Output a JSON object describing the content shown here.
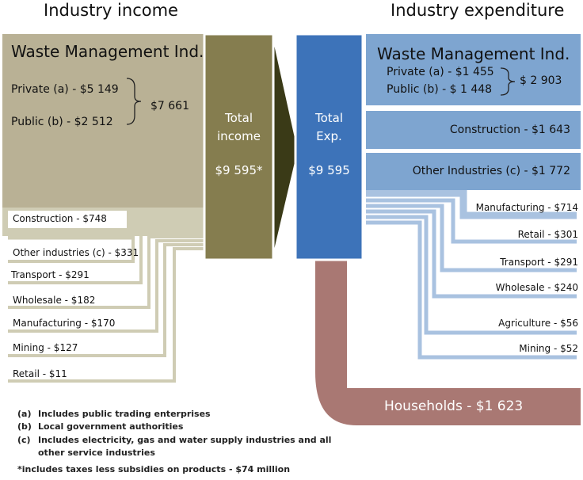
{
  "income": {
    "title": "Industry income",
    "waste_mgmt": {
      "title": "Waste Management Ind.",
      "private": "Private (a) - $5 149",
      "public": "Public (b) - $2 512",
      "total": "$7 661"
    },
    "items": [
      {
        "label": "Construction -  $748"
      },
      {
        "label": "Other industries (c) -  $331"
      },
      {
        "label": "Transport  -  $291"
      },
      {
        "label": "Wholesale -  $182"
      },
      {
        "label": "Manufacturing -  $170"
      },
      {
        "label": "Mining -  $127"
      },
      {
        "label": "Retail -  $11"
      }
    ],
    "total_line1": "Total",
    "total_line2": "income",
    "total_value": "$9 595*"
  },
  "expenditure": {
    "title": "Industry expenditure",
    "waste_mgmt": {
      "title": "Waste Management Ind.",
      "private": "Private (a) - $1 455",
      "public": "Public (b) - $ 1 448",
      "total": "$ 2 903"
    },
    "construction": "Construction - $1 643",
    "other": "Other Industries (c) - $1 772",
    "items": [
      {
        "label": "Manufacturing - $714"
      },
      {
        "label": "Retail - $301"
      },
      {
        "label": "Transport  - $291"
      },
      {
        "label": "Wholesale - $240"
      },
      {
        "label": "Agriculture - $56"
      },
      {
        "label": "Mining - $52"
      }
    ],
    "households": "Households - $1 623",
    "total_line1": "Total",
    "total_line2": "Exp.",
    "total_value": "$9 595"
  },
  "footnotes": [
    {
      "key": "(a)",
      "text": "Includes public trading enterprises"
    },
    {
      "key": "(b)",
      "text": "Local government authorities"
    },
    {
      "key": "(c)",
      "text": "Includes electricity, gas and water supply industries and all"
    },
    {
      "key": "",
      "text": "other service industries"
    }
  ],
  "asterisk_note": "*includes taxes less subsidies on products - $74 million",
  "colors": {
    "income_box": "#b9b195",
    "income_total": "#857d4f",
    "arrow": "#3a3a17",
    "exp_total": "#3d73b9",
    "exp_box": "#7ea5d0",
    "exp_line": "#a9c2e0",
    "households": "#a97873"
  }
}
